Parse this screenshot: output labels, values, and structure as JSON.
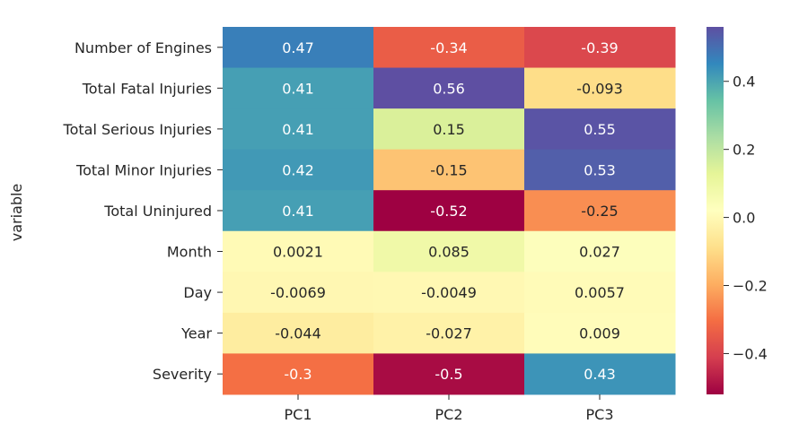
{
  "chart_data": {
    "type": "heatmap",
    "ylabel": "variable",
    "xlabel": "",
    "columns": [
      "PC1",
      "PC2",
      "PC3"
    ],
    "rows": [
      "Number of Engines",
      "Total Fatal Injuries",
      "Total Serious Injuries",
      "Total Minor Injuries",
      "Total Uninjured",
      "Month",
      "Day",
      "Year",
      "Severity"
    ],
    "values": [
      [
        0.47,
        -0.34,
        -0.39
      ],
      [
        0.41,
        0.56,
        -0.093
      ],
      [
        0.41,
        0.15,
        0.55
      ],
      [
        0.42,
        -0.15,
        0.53
      ],
      [
        0.41,
        -0.52,
        -0.25
      ],
      [
        0.0021,
        0.085,
        0.027
      ],
      [
        -0.0069,
        -0.0049,
        0.0057
      ],
      [
        -0.044,
        -0.027,
        0.009
      ],
      [
        -0.3,
        -0.5,
        0.43
      ]
    ],
    "value_labels": [
      [
        "0.47",
        "-0.34",
        "-0.39"
      ],
      [
        "0.41",
        "0.56",
        "-0.093"
      ],
      [
        "0.41",
        "0.15",
        "0.55"
      ],
      [
        "0.42",
        "-0.15",
        "0.53"
      ],
      [
        "0.41",
        "-0.52",
        "-0.25"
      ],
      [
        "0.0021",
        "0.085",
        "0.027"
      ],
      [
        "-0.0069",
        "-0.0049",
        "0.0057"
      ],
      [
        "-0.044",
        "-0.027",
        "0.009"
      ],
      [
        "-0.3",
        "-0.5",
        "0.43"
      ]
    ],
    "colormap": "Spectral",
    "colorbar": {
      "vmin": -0.52,
      "vmax": 0.56,
      "ticks": [
        0.4,
        0.2,
        0.0,
        -0.2,
        -0.4
      ],
      "tick_labels": [
        "0.4",
        "0.2",
        "0.0",
        "−0.2",
        "−0.4"
      ]
    },
    "grid": false,
    "legend": "colorbar-right"
  }
}
